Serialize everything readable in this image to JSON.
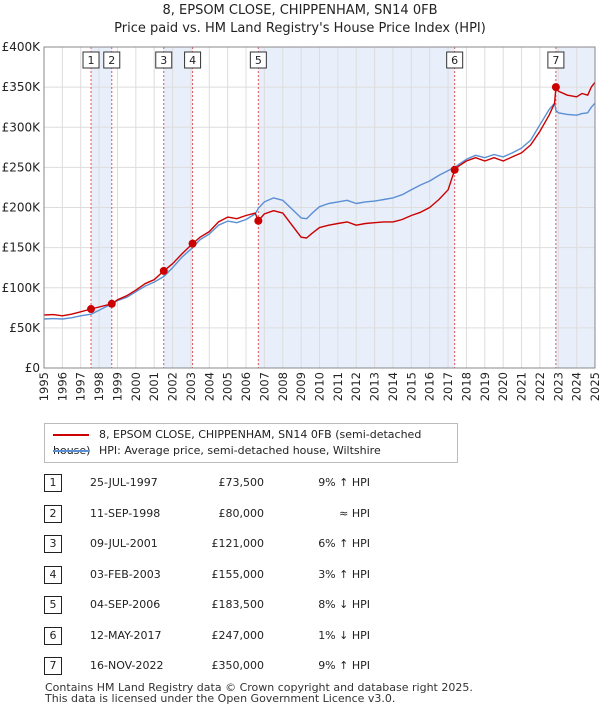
{
  "title": "8, EPSOM CLOSE, CHIPPENHAM, SN14 0FB",
  "subtitle": "Price paid vs. HM Land Registry's House Price Index (HPI)",
  "colors": {
    "price_paid": "#cc0000",
    "hpi": "#5b8fd4",
    "shade": "#e8eefa",
    "vline": "#e05555",
    "grid": "#dddddd"
  },
  "legend": {
    "price_paid": "8, EPSOM CLOSE, CHIPPENHAM, SN14 0FB (semi-detached house)",
    "hpi": "HPI: Average price, semi-detached house, Wiltshire"
  },
  "transactions": [
    {
      "num": "1",
      "date": "25-JUL-1997",
      "price": "£73,500",
      "hpi": "9% ↑ HPI"
    },
    {
      "num": "2",
      "date": "11-SEP-1998",
      "price": "£80,000",
      "hpi": "≈ HPI"
    },
    {
      "num": "3",
      "date": "09-JUL-2001",
      "price": "£121,000",
      "hpi": "6% ↑ HPI"
    },
    {
      "num": "4",
      "date": "03-FEB-2003",
      "price": "£155,000",
      "hpi": "3% ↑ HPI"
    },
    {
      "num": "5",
      "date": "04-SEP-2006",
      "price": "£183,500",
      "hpi": "8% ↓ HPI"
    },
    {
      "num": "6",
      "date": "12-MAY-2017",
      "price": "£247,000",
      "hpi": "1% ↓ HPI"
    },
    {
      "num": "7",
      "date": "16-NOV-2022",
      "price": "£350,000",
      "hpi": "9% ↑ HPI"
    }
  ],
  "footer": {
    "line1": "Contains HM Land Registry data © Crown copyright and database right 2025.",
    "line2": "This data is licensed under the Open Government Licence v3.0."
  },
  "chart_data": {
    "type": "line",
    "title": "8, EPSOM CLOSE, CHIPPENHAM, SN14 0FB",
    "subtitle": "Price paid vs. HM Land Registry's House Price Index (HPI)",
    "xlabel": "",
    "ylabel": "",
    "xlim": [
      1995,
      2025
    ],
    "ylim": [
      0,
      400000
    ],
    "x_ticks": [
      1995,
      1996,
      1997,
      1998,
      1999,
      2000,
      2001,
      2002,
      2003,
      2004,
      2005,
      2006,
      2007,
      2008,
      2009,
      2010,
      2011,
      2012,
      2013,
      2014,
      2015,
      2016,
      2017,
      2018,
      2019,
      2020,
      2021,
      2022,
      2023,
      2024,
      2025
    ],
    "y_ticks": [
      {
        "value": 0,
        "label": "£0"
      },
      {
        "value": 50000,
        "label": "£50K"
      },
      {
        "value": 100000,
        "label": "£100K"
      },
      {
        "value": 150000,
        "label": "£150K"
      },
      {
        "value": 200000,
        "label": "£200K"
      },
      {
        "value": 250000,
        "label": "£250K"
      },
      {
        "value": 300000,
        "label": "£300K"
      },
      {
        "value": 350000,
        "label": "£350K"
      },
      {
        "value": 400000,
        "label": "£400K"
      }
    ],
    "grid": true,
    "legend_position": "below",
    "shaded_periods": [
      [
        1997.56,
        1998.69
      ],
      [
        2001.52,
        2003.09
      ],
      [
        2006.67,
        2017.36
      ],
      [
        2022.87,
        2025.0
      ]
    ],
    "sales": [
      {
        "label": "1",
        "x": 1997.56,
        "y": 73500
      },
      {
        "label": "2",
        "x": 1998.69,
        "y": 80000
      },
      {
        "label": "3",
        "x": 2001.52,
        "y": 121000
      },
      {
        "label": "4",
        "x": 2003.09,
        "y": 155000
      },
      {
        "label": "5",
        "x": 2006.67,
        "y": 183500
      },
      {
        "label": "6",
        "x": 2017.36,
        "y": 247000
      },
      {
        "label": "7",
        "x": 2022.87,
        "y": 350000
      }
    ],
    "series": [
      {
        "name": "8, EPSOM CLOSE, CHIPPENHAM, SN14 0FB (semi-detached house)",
        "x": [
          1995.0,
          1995.5,
          1996.0,
          1996.5,
          1997.0,
          1997.56,
          1998.0,
          1998.69,
          1999.0,
          1999.5,
          2000.0,
          2000.5,
          2001.0,
          2001.52,
          2002.0,
          2002.5,
          2003.09,
          2003.5,
          2004.0,
          2004.5,
          2005.0,
          2005.5,
          2006.0,
          2006.5,
          2006.67,
          2007.0,
          2007.5,
          2008.0,
          2008.5,
          2009.0,
          2009.3,
          2009.6,
          2010.0,
          2010.5,
          2011.0,
          2011.5,
          2012.0,
          2012.5,
          2013.0,
          2013.5,
          2014.0,
          2014.5,
          2015.0,
          2015.5,
          2016.0,
          2016.5,
          2017.0,
          2017.36,
          2017.6,
          2018.0,
          2018.5,
          2019.0,
          2019.5,
          2020.0,
          2020.5,
          2021.0,
          2021.5,
          2022.0,
          2022.5,
          2022.8,
          2022.87,
          2023.0,
          2023.5,
          2024.0,
          2024.3,
          2024.6,
          2024.8,
          2025.0
        ],
        "y": [
          66000,
          66500,
          65000,
          67000,
          70000,
          73500,
          76000,
          80000,
          85000,
          90000,
          97000,
          105000,
          110000,
          121000,
          130000,
          142000,
          155000,
          163000,
          170000,
          182000,
          188000,
          186000,
          190000,
          193000,
          183500,
          192000,
          196000,
          193000,
          178000,
          163000,
          162000,
          168000,
          175000,
          178000,
          180000,
          182000,
          178000,
          180000,
          181000,
          182000,
          182000,
          185000,
          190000,
          194000,
          200000,
          210000,
          222000,
          247000,
          252000,
          258000,
          262000,
          258000,
          262000,
          258000,
          263000,
          268000,
          278000,
          295000,
          315000,
          330000,
          350000,
          345000,
          340000,
          338000,
          342000,
          340000,
          350000,
          356000
        ]
      },
      {
        "name": "HPI: Average price, semi-detached house, Wiltshire",
        "x": [
          1995.0,
          1995.5,
          1996.0,
          1996.5,
          1997.0,
          1997.56,
          1998.0,
          1998.69,
          1999.0,
          1999.5,
          2000.0,
          2000.5,
          2001.0,
          2001.52,
          2002.0,
          2002.5,
          2003.09,
          2003.5,
          2004.0,
          2004.5,
          2005.0,
          2005.5,
          2006.0,
          2006.5,
          2006.67,
          2007.0,
          2007.5,
          2008.0,
          2008.5,
          2009.0,
          2009.3,
          2009.6,
          2010.0,
          2010.5,
          2011.0,
          2011.5,
          2012.0,
          2012.5,
          2013.0,
          2013.5,
          2014.0,
          2014.5,
          2015.0,
          2015.5,
          2016.0,
          2016.5,
          2017.0,
          2017.36,
          2017.6,
          2018.0,
          2018.5,
          2019.0,
          2019.5,
          2020.0,
          2020.5,
          2021.0,
          2021.5,
          2022.0,
          2022.5,
          2022.8,
          2022.87,
          2023.0,
          2023.5,
          2024.0,
          2024.3,
          2024.6,
          2024.8,
          2025.0
        ],
        "y": [
          61000,
          61500,
          61000,
          62500,
          65000,
          67000,
          72000,
          80000,
          84000,
          88000,
          95000,
          102000,
          107000,
          114000,
          125000,
          138000,
          150000,
          160000,
          167000,
          178000,
          183000,
          181000,
          185000,
          192000,
          199000,
          207000,
          212000,
          209000,
          198000,
          187000,
          186000,
          193000,
          201000,
          205000,
          207000,
          209000,
          205000,
          207000,
          208000,
          210000,
          212000,
          216000,
          222000,
          228000,
          233000,
          240000,
          246000,
          250000,
          254000,
          260000,
          265000,
          262000,
          266000,
          263000,
          268000,
          274000,
          284000,
          303000,
          322000,
          330000,
          321000,
          318000,
          316000,
          315000,
          317000,
          318000,
          325000,
          330000
        ]
      }
    ]
  }
}
